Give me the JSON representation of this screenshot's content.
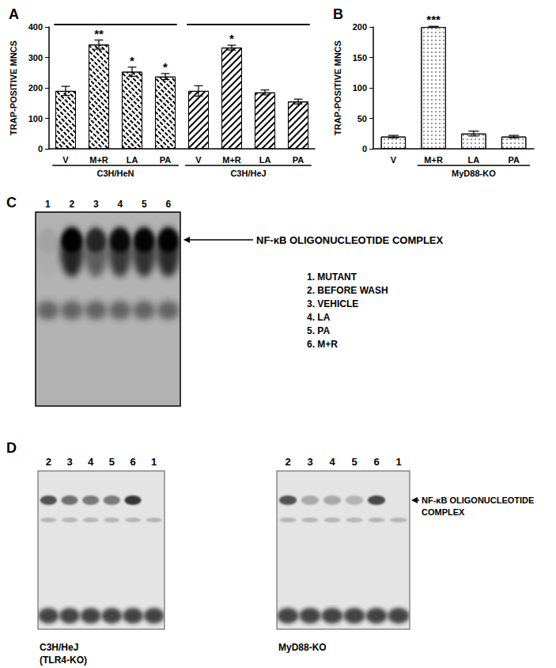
{
  "chart_data": [
    {
      "type": "bar",
      "title": "A",
      "categories": [
        "V",
        "M+R",
        "LA",
        "PA",
        "V",
        "M+R",
        "LA",
        "PA"
      ],
      "values": [
        190,
        342,
        253,
        237,
        190,
        332,
        185,
        155
      ],
      "errors": [
        15,
        15,
        15,
        10,
        17,
        8,
        8,
        8
      ],
      "significance": [
        null,
        "**",
        "*",
        "*",
        null,
        "*",
        null,
        null
      ],
      "groups": [
        {
          "label": "C3H/HeN",
          "span": [
            0,
            3
          ]
        },
        {
          "label": "C3H/HeJ",
          "span": [
            4,
            7
          ]
        }
      ],
      "brackets": [
        [
          0,
          3
        ],
        [
          4,
          7
        ]
      ],
      "color": "#ffffff",
      "y_label": "TRAP-POSITIVE MNCS",
      "ylim": [
        0,
        400
      ],
      "yticks": [
        0,
        100,
        200,
        300,
        400
      ],
      "grid": false
    },
    {
      "type": "bar",
      "title": "B",
      "categories": [
        "V",
        "M+R",
        "LA",
        "PA"
      ],
      "values": [
        20,
        200,
        25,
        20
      ],
      "errors": [
        2,
        1,
        4,
        2
      ],
      "significance": [
        null,
        "***",
        null,
        null
      ],
      "groups": [
        {
          "label": "MyD88-KO",
          "span": [
            1,
            3
          ]
        }
      ],
      "color": "#ffffff",
      "y_label": "TRAP-POSITIVE MNCS",
      "ylim": [
        0,
        200
      ],
      "yticks": [
        0,
        50,
        100,
        150,
        200
      ],
      "grid": false
    }
  ],
  "gels": [
    {
      "panel": "C",
      "lane_numbers": [
        1,
        2,
        3,
        4,
        5,
        6
      ],
      "complex_intensity": [
        0.05,
        1,
        0.6,
        0.85,
        0.9,
        0.95
      ],
      "band_label": "NF-κB OLIGONUCLEOTIDE COMPLEX",
      "lane_key": [
        "1. MUTANT",
        "2. BEFORE WASH",
        "3. VEHICLE",
        "4. LA",
        "5. PA",
        "6. M+R"
      ]
    },
    {
      "panel": "D",
      "band_label": "NF-κB OLIGONUCLEOTIDE COMPLEX",
      "blots": [
        {
          "caption": "C3H/HeJ\n(TLR4-KO)",
          "lane_numbers": [
            2,
            3,
            4,
            5,
            6,
            1
          ],
          "complex_intensity": [
            0.75,
            0.6,
            0.55,
            0.55,
            0.9,
            0
          ]
        },
        {
          "caption": "MyD88-KO",
          "lane_numbers": [
            2,
            3,
            4,
            5,
            6,
            1
          ],
          "complex_intensity": [
            0.75,
            0.3,
            0.3,
            0.25,
            0.8,
            0
          ]
        }
      ]
    }
  ]
}
